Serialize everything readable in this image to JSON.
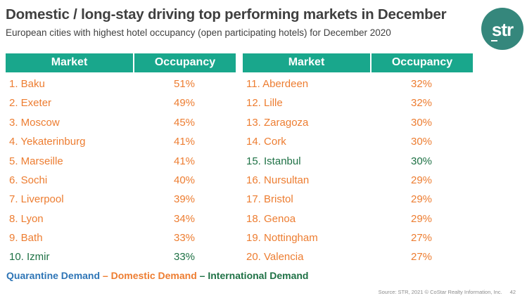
{
  "logo": {
    "text": "str"
  },
  "colors": {
    "header_bg": "#19A78C",
    "logo_bg": "#35877C",
    "title_text": "#3F3F3F",
    "quarantine": "#2E75B6",
    "domestic": "#ED7D31",
    "international": "#1E7145"
  },
  "chart_data": {
    "type": "table",
    "title": "Domestic / long-stay driving top performing markets in December",
    "subtitle": "European cities with highest hotel occupancy (open participating hotels) for December 2020",
    "columns": [
      "Market",
      "Occupancy"
    ],
    "legend_entries": [
      "Quarantine Demand",
      "Domestic Demand",
      "International Demand"
    ],
    "rows_left": [
      {
        "rank": "1.",
        "market": "Baku",
        "occupancy": "51%",
        "value": 51,
        "demand": "domestic"
      },
      {
        "rank": "2.",
        "market": "Exeter",
        "occupancy": "49%",
        "value": 49,
        "demand": "domestic"
      },
      {
        "rank": "3.",
        "market": "Moscow",
        "occupancy": "45%",
        "value": 45,
        "demand": "domestic"
      },
      {
        "rank": "4.",
        "market": "Yekaterinburg",
        "occupancy": "41%",
        "value": 41,
        "demand": "domestic"
      },
      {
        "rank": "5.",
        "market": "Marseille",
        "occupancy": "41%",
        "value": 41,
        "demand": "domestic"
      },
      {
        "rank": "6.",
        "market": "Sochi",
        "occupancy": "40%",
        "value": 40,
        "demand": "domestic"
      },
      {
        "rank": "7.",
        "market": "Liverpool",
        "occupancy": "39%",
        "value": 39,
        "demand": "domestic"
      },
      {
        "rank": "8.",
        "market": "Lyon",
        "occupancy": "34%",
        "value": 34,
        "demand": "domestic"
      },
      {
        "rank": "9.",
        "market": "Bath",
        "occupancy": "33%",
        "value": 33,
        "demand": "domestic"
      },
      {
        "rank": "10.",
        "market": "Izmir",
        "occupancy": "33%",
        "value": 33,
        "demand": "international"
      }
    ],
    "rows_right": [
      {
        "rank": "11.",
        "market": "Aberdeen",
        "occupancy": "32%",
        "value": 32,
        "demand": "domestic"
      },
      {
        "rank": "12.",
        "market": "Lille",
        "occupancy": "32%",
        "value": 32,
        "demand": "domestic"
      },
      {
        "rank": "13.",
        "market": "Zaragoza",
        "occupancy": "30%",
        "value": 30,
        "demand": "domestic"
      },
      {
        "rank": "14.",
        "market": "Cork",
        "occupancy": "30%",
        "value": 30,
        "demand": "domestic"
      },
      {
        "rank": "15.",
        "market": "Istanbul",
        "occupancy": "30%",
        "value": 30,
        "demand": "international"
      },
      {
        "rank": "16.",
        "market": "Nursultan",
        "occupancy": "29%",
        "value": 29,
        "demand": "domestic"
      },
      {
        "rank": "17.",
        "market": "Bristol",
        "occupancy": "29%",
        "value": 29,
        "demand": "domestic"
      },
      {
        "rank": "18.",
        "market": "Genoa",
        "occupancy": "29%",
        "value": 29,
        "demand": "domestic"
      },
      {
        "rank": "19.",
        "market": "Nottingham",
        "occupancy": "27%",
        "value": 27,
        "demand": "domestic"
      },
      {
        "rank": "20.",
        "market": "Valencia",
        "occupancy": "27%",
        "value": 27,
        "demand": "domestic"
      }
    ]
  },
  "legend": {
    "separator": "–",
    "items": [
      {
        "label": "Quarantine Demand",
        "demand": "quarantine"
      },
      {
        "label": "Domestic Demand",
        "demand": "domestic"
      },
      {
        "label": "International Demand",
        "demand": "international"
      }
    ]
  },
  "footer": {
    "source": "Source: STR, 2021 © CoStar Realty Information, Inc.",
    "page": "42"
  }
}
